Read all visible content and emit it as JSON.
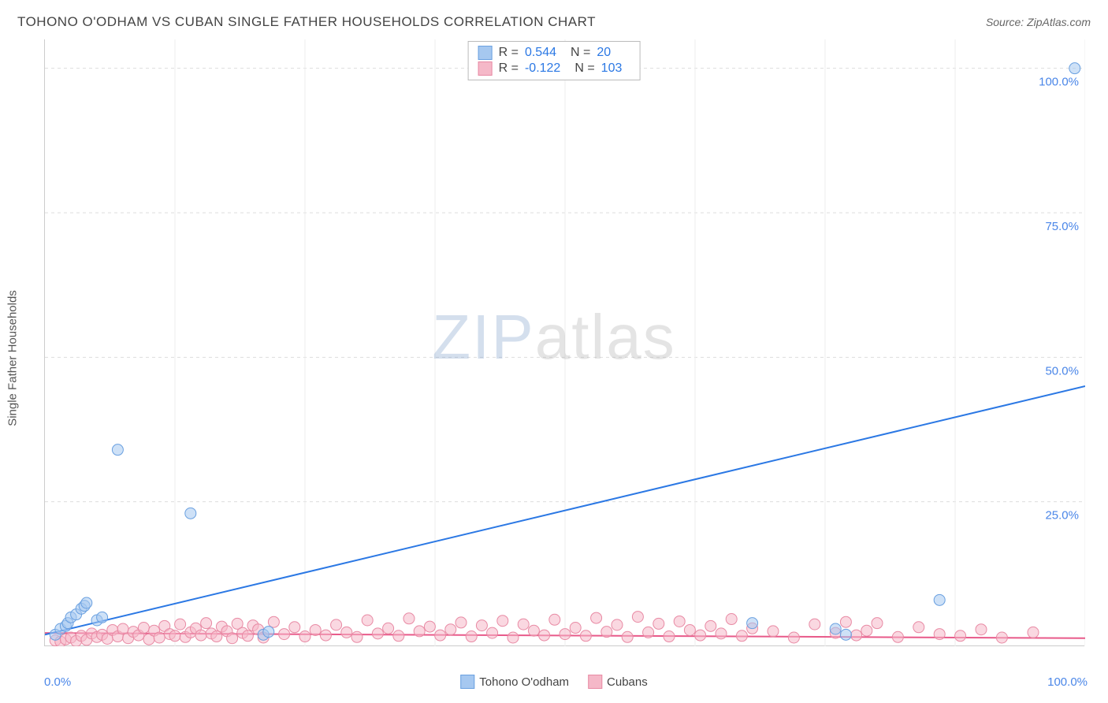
{
  "title": "TOHONO O'ODHAM VS CUBAN SINGLE FATHER HOUSEHOLDS CORRELATION CHART",
  "source": "Source: ZipAtlas.com",
  "ylabel": "Single Father Households",
  "watermark": {
    "part1": "ZIP",
    "part2": "atlas"
  },
  "chart": {
    "type": "scatter",
    "xlim": [
      0,
      100
    ],
    "ylim": [
      0,
      105
    ],
    "x_tick_labels": [
      "0.0%",
      "100.0%"
    ],
    "y_ticks": [
      25,
      50,
      75,
      100
    ],
    "y_tick_labels": [
      "25.0%",
      "50.0%",
      "75.0%",
      "100.0%"
    ],
    "x_minor_grid": [
      12.5,
      25,
      37.5,
      50,
      62.5,
      75,
      87.5,
      100
    ],
    "background_color": "#ffffff",
    "grid_color": "#dddddd",
    "minor_grid_color": "#eeeeee",
    "axis_color": "#cccccc",
    "tick_label_color": "#4a86e8",
    "marker_radius": 7,
    "marker_opacity": 0.55,
    "series": [
      {
        "name": "Tohono O'odham",
        "color_fill": "#a6c8f0",
        "color_stroke": "#6aa0e0",
        "R": "0.544",
        "N": "20",
        "trend": {
          "x1": 0,
          "y1": 2,
          "x2": 100,
          "y2": 45,
          "color": "#2b78e4",
          "width": 2
        },
        "points": [
          [
            1,
            2
          ],
          [
            1.5,
            3
          ],
          [
            2,
            3.5
          ],
          [
            2.2,
            4
          ],
          [
            2.5,
            5
          ],
          [
            3,
            5.5
          ],
          [
            3.5,
            6.5
          ],
          [
            3.8,
            7
          ],
          [
            4,
            7.5
          ],
          [
            5,
            4.5
          ],
          [
            5.5,
            5
          ],
          [
            7,
            34
          ],
          [
            14,
            23
          ],
          [
            21,
            2
          ],
          [
            21.5,
            2.5
          ],
          [
            68,
            4
          ],
          [
            76,
            3
          ],
          [
            86,
            8
          ],
          [
            99,
            100
          ],
          [
            77,
            2
          ]
        ]
      },
      {
        "name": "Cubans",
        "color_fill": "#f5b8c8",
        "color_stroke": "#e88aa4",
        "R": "-0.122",
        "N": "103",
        "trend": {
          "x1": 0,
          "y1": 2.3,
          "x2": 100,
          "y2": 1.4,
          "color": "#e85a8a",
          "width": 2
        },
        "points": [
          [
            1,
            1
          ],
          [
            1.5,
            0.8
          ],
          [
            2,
            1.2
          ],
          [
            2.5,
            1.5
          ],
          [
            3,
            0.9
          ],
          [
            3.5,
            1.8
          ],
          [
            4,
            1.1
          ],
          [
            4.5,
            2.2
          ],
          [
            5,
            1.6
          ],
          [
            5.5,
            2
          ],
          [
            6,
            1.3
          ],
          [
            6.5,
            2.8
          ],
          [
            7,
            1.7
          ],
          [
            7.5,
            3
          ],
          [
            8,
            1.4
          ],
          [
            8.5,
            2.5
          ],
          [
            9,
            1.9
          ],
          [
            9.5,
            3.2
          ],
          [
            10,
            1.2
          ],
          [
            10.5,
            2.7
          ],
          [
            11,
            1.5
          ],
          [
            11.5,
            3.5
          ],
          [
            12,
            2.1
          ],
          [
            12.5,
            1.8
          ],
          [
            13,
            3.8
          ],
          [
            13.5,
            1.6
          ],
          [
            14,
            2.4
          ],
          [
            14.5,
            3.1
          ],
          [
            15,
            1.9
          ],
          [
            15.5,
            4
          ],
          [
            16,
            2.2
          ],
          [
            16.5,
            1.7
          ],
          [
            17,
            3.4
          ],
          [
            17.5,
            2.6
          ],
          [
            18,
            1.4
          ],
          [
            18.5,
            3.9
          ],
          [
            19,
            2.3
          ],
          [
            19.5,
            1.8
          ],
          [
            20,
            3.6
          ],
          [
            20.5,
            2.9
          ],
          [
            21,
            1.5
          ],
          [
            22,
            4.2
          ],
          [
            23,
            2.1
          ],
          [
            24,
            3.3
          ],
          [
            25,
            1.7
          ],
          [
            26,
            2.8
          ],
          [
            27,
            1.9
          ],
          [
            28,
            3.7
          ],
          [
            29,
            2.4
          ],
          [
            30,
            1.6
          ],
          [
            31,
            4.5
          ],
          [
            32,
            2.2
          ],
          [
            33,
            3.1
          ],
          [
            34,
            1.8
          ],
          [
            35,
            4.8
          ],
          [
            36,
            2.6
          ],
          [
            37,
            3.4
          ],
          [
            38,
            1.9
          ],
          [
            39,
            2.9
          ],
          [
            40,
            4.1
          ],
          [
            41,
            1.7
          ],
          [
            42,
            3.6
          ],
          [
            43,
            2.3
          ],
          [
            44,
            4.4
          ],
          [
            45,
            1.5
          ],
          [
            46,
            3.8
          ],
          [
            47,
            2.7
          ],
          [
            48,
            1.9
          ],
          [
            49,
            4.6
          ],
          [
            50,
            2.1
          ],
          [
            51,
            3.2
          ],
          [
            52,
            1.8
          ],
          [
            53,
            4.9
          ],
          [
            54,
            2.5
          ],
          [
            55,
            3.7
          ],
          [
            56,
            1.6
          ],
          [
            57,
            5.1
          ],
          [
            58,
            2.4
          ],
          [
            59,
            3.9
          ],
          [
            60,
            1.7
          ],
          [
            61,
            4.3
          ],
          [
            62,
            2.8
          ],
          [
            63,
            1.9
          ],
          [
            64,
            3.5
          ],
          [
            65,
            2.2
          ],
          [
            66,
            4.7
          ],
          [
            67,
            1.8
          ],
          [
            68,
            3.1
          ],
          [
            70,
            2.6
          ],
          [
            72,
            1.5
          ],
          [
            74,
            3.8
          ],
          [
            76,
            2.3
          ],
          [
            77,
            4.2
          ],
          [
            78,
            1.9
          ],
          [
            79,
            2.7
          ],
          [
            80,
            4
          ],
          [
            82,
            1.6
          ],
          [
            84,
            3.3
          ],
          [
            86,
            2.1
          ],
          [
            88,
            1.8
          ],
          [
            90,
            2.9
          ],
          [
            92,
            1.5
          ],
          [
            95,
            2.4
          ]
        ]
      }
    ]
  },
  "legend_bottom": [
    "Tohono O'odham",
    "Cubans"
  ]
}
